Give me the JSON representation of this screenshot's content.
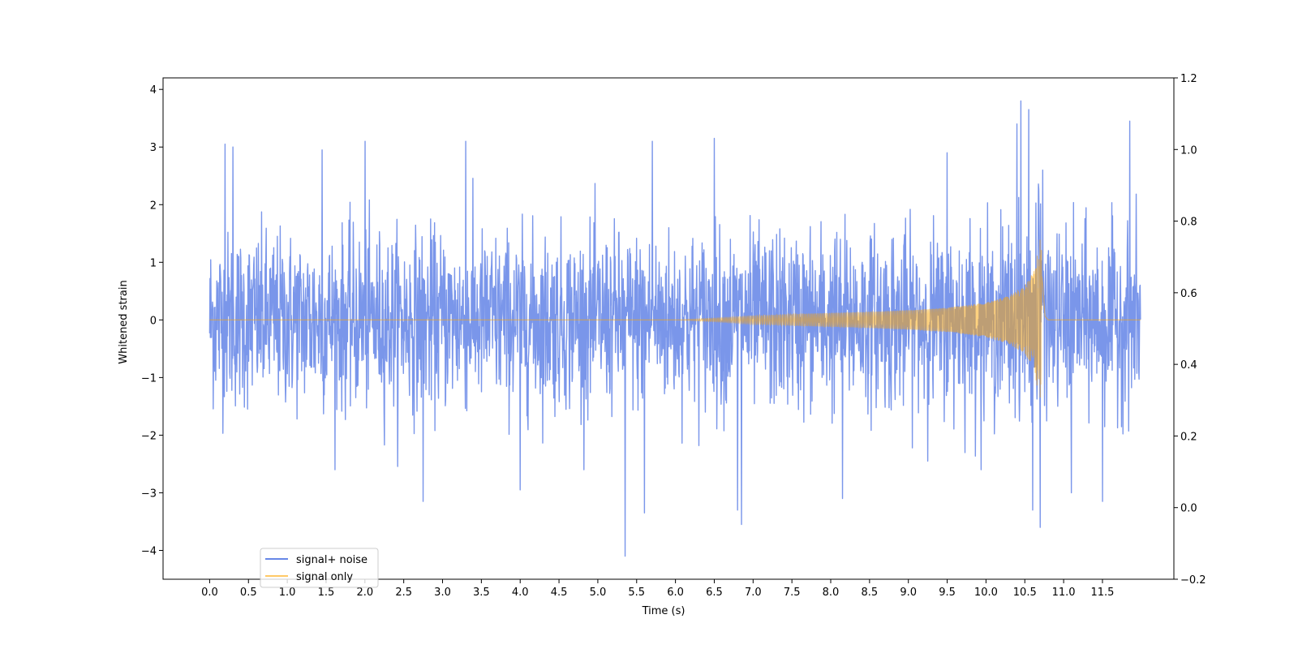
{
  "chart_data": {
    "type": "line",
    "title": "",
    "xlabel": "Time (s)",
    "ylabel": "Whitened strain",
    "xlim": [
      -0.6,
      12.42
    ],
    "ylim": [
      -4.5,
      4.2
    ],
    "y2lim": [
      -0.2,
      1.2
    ],
    "x_ticks": [
      0.0,
      0.5,
      1.0,
      1.5,
      2.0,
      2.5,
      3.0,
      3.5,
      4.0,
      4.5,
      5.0,
      5.5,
      6.0,
      6.5,
      7.0,
      7.5,
      8.0,
      8.5,
      9.0,
      9.5,
      10.0,
      10.5,
      11.0,
      11.5
    ],
    "x_tick_labels": [
      "0.0",
      "0.5",
      "1.0",
      "1.5",
      "2.0",
      "2.5",
      "3.0",
      "3.5",
      "4.0",
      "4.5",
      "5.0",
      "5.5",
      "6.0",
      "6.5",
      "7.0",
      "7.5",
      "8.0",
      "8.5",
      "9.0",
      "9.5",
      "10.0",
      "10.5",
      "11.0",
      "11.5"
    ],
    "y_ticks": [
      -4,
      -3,
      -2,
      -1,
      0,
      1,
      2,
      3,
      4
    ],
    "y_tick_labels": [
      "−4",
      "−3",
      "−2",
      "−1",
      "0",
      "1",
      "2",
      "3",
      "4"
    ],
    "y2_ticks": [
      -0.2,
      0.0,
      0.2,
      0.4,
      0.6,
      0.8,
      1.0,
      1.2
    ],
    "y2_tick_labels": [
      "−0.2",
      "0.0",
      "0.2",
      "0.4",
      "0.6",
      "0.8",
      "1.0",
      "1.2"
    ],
    "grid": false,
    "legend_position": "lower-left",
    "series": [
      {
        "name": "signal+ noise",
        "color": "#4169e1",
        "alpha": 0.7,
        "x_range": [
          0.0,
          11.99
        ],
        "noise_std": 0.75,
        "peak_max": [
          [
            0.2,
            3.05
          ],
          [
            0.3,
            3.0
          ],
          [
            1.45,
            2.95
          ],
          [
            2.0,
            3.1
          ],
          [
            2.75,
            -3.15
          ],
          [
            3.3,
            3.1
          ],
          [
            4.0,
            -2.95
          ],
          [
            5.35,
            -4.1
          ],
          [
            5.6,
            -3.35
          ],
          [
            5.7,
            3.1
          ],
          [
            6.5,
            3.15
          ],
          [
            6.8,
            -3.3
          ],
          [
            6.85,
            -3.55
          ],
          [
            8.15,
            -3.1
          ],
          [
            9.5,
            2.9
          ],
          [
            10.4,
            3.4
          ],
          [
            10.45,
            3.8
          ],
          [
            10.55,
            3.65
          ],
          [
            10.6,
            -3.3
          ],
          [
            10.7,
            -3.6
          ],
          [
            11.1,
            -3.0
          ],
          [
            11.5,
            -3.15
          ],
          [
            11.85,
            3.45
          ]
        ]
      },
      {
        "name": "signal only",
        "color": "#ffa500",
        "alpha": 0.5,
        "x_range": [
          0.0,
          11.99
        ],
        "merger_time": 10.72,
        "chirp_envelope": [
          [
            0.0,
            0.0
          ],
          [
            6.0,
            0.0
          ],
          [
            6.5,
            0.03
          ],
          [
            7.0,
            0.07
          ],
          [
            7.5,
            0.1
          ],
          [
            8.0,
            0.12
          ],
          [
            8.5,
            0.14
          ],
          [
            9.0,
            0.17
          ],
          [
            9.5,
            0.21
          ],
          [
            10.0,
            0.3
          ],
          [
            10.3,
            0.42
          ],
          [
            10.5,
            0.6
          ],
          [
            10.62,
            0.85
          ],
          [
            10.7,
            1.5
          ],
          [
            10.73,
            1.0
          ],
          [
            10.76,
            0.1
          ],
          [
            10.8,
            0.0
          ],
          [
            11.99,
            0.0
          ]
        ]
      }
    ]
  }
}
